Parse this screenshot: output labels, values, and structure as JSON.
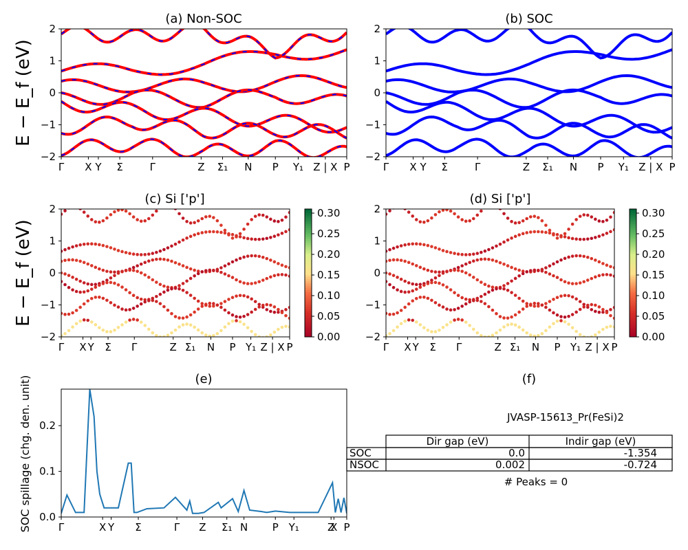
{
  "panel_titles": {
    "a": "(a) Non-SOC",
    "b": "(b) SOC",
    "c": "(c)  Si ['p']",
    "d": "(d) Si ['p']",
    "e": "(e)",
    "f": "(f)"
  },
  "axis_labels": {
    "band_ylabel": "E − E_f (eV)",
    "spillage_ylabel": "SOC spillage (chg. den. unit)"
  },
  "kpath_labels": [
    "Γ",
    "X",
    "Y",
    "Σ",
    "Γ",
    "Z",
    "Σ₁",
    "N",
    "P",
    "Y₁",
    "Z | X",
    "P"
  ],
  "band_yticks": [
    "2",
    "1",
    "0",
    "−1",
    "−2"
  ],
  "colorbar_ticks": [
    "0.30",
    "0.25",
    "0.20",
    "0.15",
    "0.10",
    "0.05",
    "0.00"
  ],
  "spillage_yticks": [
    "0.2",
    "0.1",
    "0.0"
  ],
  "info": {
    "material": "JVASP-15613_Pr(FeSi)2",
    "peaks": "# Peaks = 0",
    "table": {
      "headers": [
        "",
        "Dir gap (eV)",
        "Indir gap (eV)"
      ],
      "rows": [
        [
          "SOC",
          "0.0",
          "-1.354"
        ],
        [
          "NSOC",
          "0.002",
          "-0.724"
        ]
      ]
    }
  },
  "colors": {
    "nsoc_band": "#ff0000",
    "soc_band": "#0000ff",
    "spillage_line": "#1f77b4"
  },
  "chart_data": [
    {
      "id": "a",
      "type": "line",
      "title": "(a) Non-SOC",
      "ylim": [
        -2,
        2
      ],
      "x_ticks": [
        "Γ",
        "X",
        "Y",
        "Σ",
        "Γ",
        "Z",
        "Σ₁",
        "N",
        "P",
        "Y₁",
        "Z | X",
        "P"
      ],
      "ylabel": "E − E_f (eV)",
      "series": [
        {
          "x": [
            0,
            0.25,
            0.5,
            0.75,
            1
          ],
          "y": [
            0.68,
            0.7,
            0.9,
            1.2,
            1.35
          ]
        },
        {
          "x": [
            0,
            0.25,
            0.5,
            0.75,
            1
          ],
          "y": [
            0.18,
            0.25,
            0.2,
            0.3,
            0.35
          ]
        },
        {
          "x": [
            0,
            0.25,
            0.5,
            0.75,
            1
          ],
          "y": [
            -0.2,
            -0.1,
            -0.25,
            -0.05,
            -0.3
          ]
        },
        {
          "x": [
            0,
            0.25,
            0.5,
            0.75,
            1
          ],
          "y": [
            -0.3,
            -0.55,
            -0.7,
            -0.9,
            -1.05
          ]
        },
        {
          "x": [
            0,
            0.25,
            0.5,
            0.75,
            1
          ],
          "y": [
            -1.1,
            -0.9,
            -1.2,
            -1.15,
            -1.25
          ]
        },
        {
          "x": [
            0,
            0.25,
            0.5,
            0.75,
            1
          ],
          "y": [
            -1.75,
            -1.6,
            -1.85,
            -1.7,
            -1.9
          ]
        },
        {
          "x": [
            0,
            0.25,
            0.5,
            0.75,
            1
          ],
          "y": [
            1.9,
            1.75,
            1.95,
            1.3,
            1.95
          ]
        }
      ]
    },
    {
      "id": "b",
      "type": "line",
      "title": "(b) SOC",
      "ylim": [
        -2,
        2
      ],
      "x_ticks": [
        "Γ",
        "X",
        "Y",
        "Σ",
        "Γ",
        "Z",
        "Σ₁",
        "N",
        "P",
        "Y₁",
        "Z | X",
        "P"
      ],
      "series": [
        {
          "x": [
            0,
            0.25,
            0.5,
            0.75,
            1
          ],
          "y": [
            0.68,
            0.7,
            0.9,
            1.2,
            1.35
          ]
        },
        {
          "x": [
            0,
            0.25,
            0.5,
            0.75,
            1
          ],
          "y": [
            0.18,
            0.25,
            0.2,
            0.3,
            0.35
          ]
        },
        {
          "x": [
            0,
            0.25,
            0.5,
            0.75,
            1
          ],
          "y": [
            -0.2,
            -0.1,
            -0.25,
            -0.05,
            -0.3
          ]
        },
        {
          "x": [
            0,
            0.25,
            0.5,
            0.75,
            1
          ],
          "y": [
            -0.3,
            -0.55,
            -0.7,
            -0.9,
            -1.05
          ]
        },
        {
          "x": [
            0,
            0.25,
            0.5,
            0.75,
            1
          ],
          "y": [
            -1.1,
            -0.9,
            -1.2,
            -1.15,
            -1.25
          ]
        },
        {
          "x": [
            0,
            0.25,
            0.5,
            0.75,
            1
          ],
          "y": [
            -1.75,
            -1.6,
            -1.85,
            -1.7,
            -1.9
          ]
        },
        {
          "x": [
            0,
            0.25,
            0.5,
            0.75,
            1
          ],
          "y": [
            1.9,
            1.75,
            1.95,
            1.3,
            1.95
          ]
        }
      ]
    },
    {
      "id": "c",
      "type": "scatter",
      "title": "(c)  Si ['p']",
      "ylim": [
        -2,
        2
      ],
      "colorbar_range": [
        0,
        0.31
      ],
      "x_ticks": [
        "Γ",
        "X",
        "Y",
        "Σ",
        "Γ",
        "Z",
        "Σ₁",
        "N",
        "P",
        "Y₁",
        "Z | X",
        "P"
      ]
    },
    {
      "id": "d",
      "type": "scatter",
      "title": "(d) Si ['p']",
      "ylim": [
        -2,
        2
      ],
      "colorbar_range": [
        0,
        0.31
      ],
      "x_ticks": [
        "Γ",
        "X",
        "Y",
        "Σ",
        "Γ",
        "Z",
        "Σ₁",
        "N",
        "P",
        "Y₁",
        "Z | X",
        "P"
      ]
    },
    {
      "id": "e",
      "type": "line",
      "title": "(e)",
      "ylabel": "SOC spillage (chg. den. unit)",
      "ylim": [
        0,
        0.28
      ],
      "x_ticks": [
        "Γ",
        "X",
        "Y",
        "Σ",
        "Γ",
        "Z",
        "Σ₁",
        "N",
        "P",
        "Y₁",
        "Z",
        "X",
        "P"
      ],
      "x": [
        0,
        0.02,
        0.05,
        0.08,
        0.1,
        0.115,
        0.125,
        0.135,
        0.15,
        0.2,
        0.235,
        0.245,
        0.255,
        0.265,
        0.3,
        0.36,
        0.4,
        0.44,
        0.45,
        0.46,
        0.48,
        0.5,
        0.55,
        0.56,
        0.6,
        0.62,
        0.64,
        0.66,
        0.7,
        0.72,
        0.75,
        0.8,
        0.85,
        0.9,
        0.95,
        0.96,
        0.97,
        0.98,
        0.99,
        1
      ],
      "y": [
        0.008,
        0.048,
        0.01,
        0.01,
        0.28,
        0.22,
        0.1,
        0.05,
        0.02,
        0.02,
        0.118,
        0.118,
        0.01,
        0.01,
        0.018,
        0.02,
        0.043,
        0.015,
        0.035,
        0.008,
        0.008,
        0.01,
        0.032,
        0.02,
        0.04,
        0.012,
        0.058,
        0.015,
        0.012,
        0.01,
        0.013,
        0.01,
        0.01,
        0.01,
        0.075,
        0.01,
        0.04,
        0.01,
        0.042,
        0.008
      ]
    }
  ]
}
